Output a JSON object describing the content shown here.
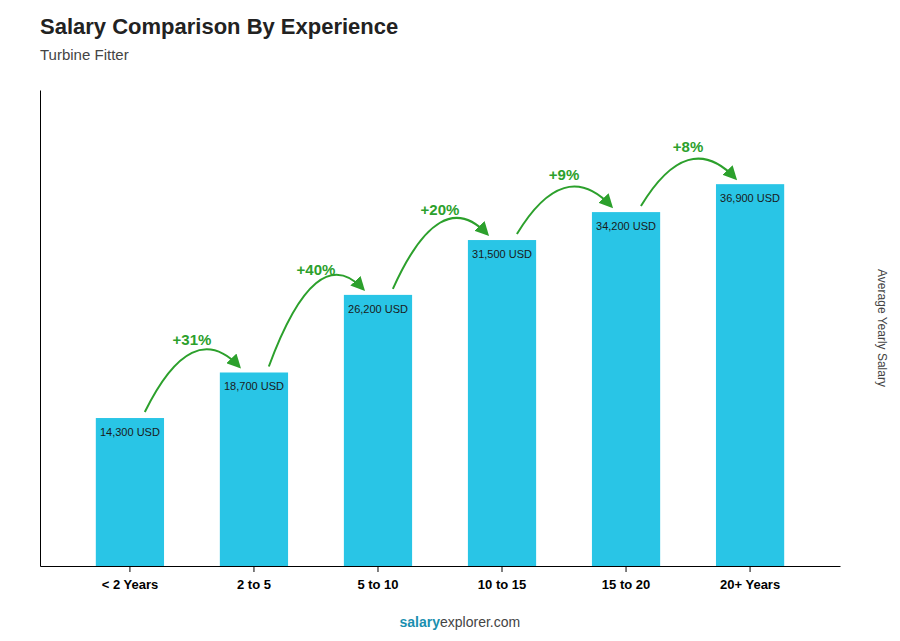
{
  "chart_data": {
    "type": "bar",
    "title": "Salary Comparison By Experience",
    "subtitle": "Turbine Fitter",
    "ylabel": "Average Yearly Salary",
    "categories": [
      "< 2 Years",
      "2 to 5",
      "5 to 10",
      "10 to 15",
      "15 to 20",
      "20+ Years"
    ],
    "values": [
      14300,
      18700,
      26200,
      31500,
      34200,
      36900
    ],
    "value_labels": [
      "14,300 USD",
      "18,700 USD",
      "26,200 USD",
      "31,500 USD",
      "34,200 USD",
      "36,900 USD"
    ],
    "data_labels": true,
    "annotations": [
      "+31%",
      "+40%",
      "+20%",
      "+9%",
      "+8%"
    ],
    "footer": [
      "salary",
      "explorer.com"
    ],
    "color": "#29c5e6",
    "ylim": [
      0,
      46000
    ],
    "grid": false,
    "tick_labels": "x"
  }
}
